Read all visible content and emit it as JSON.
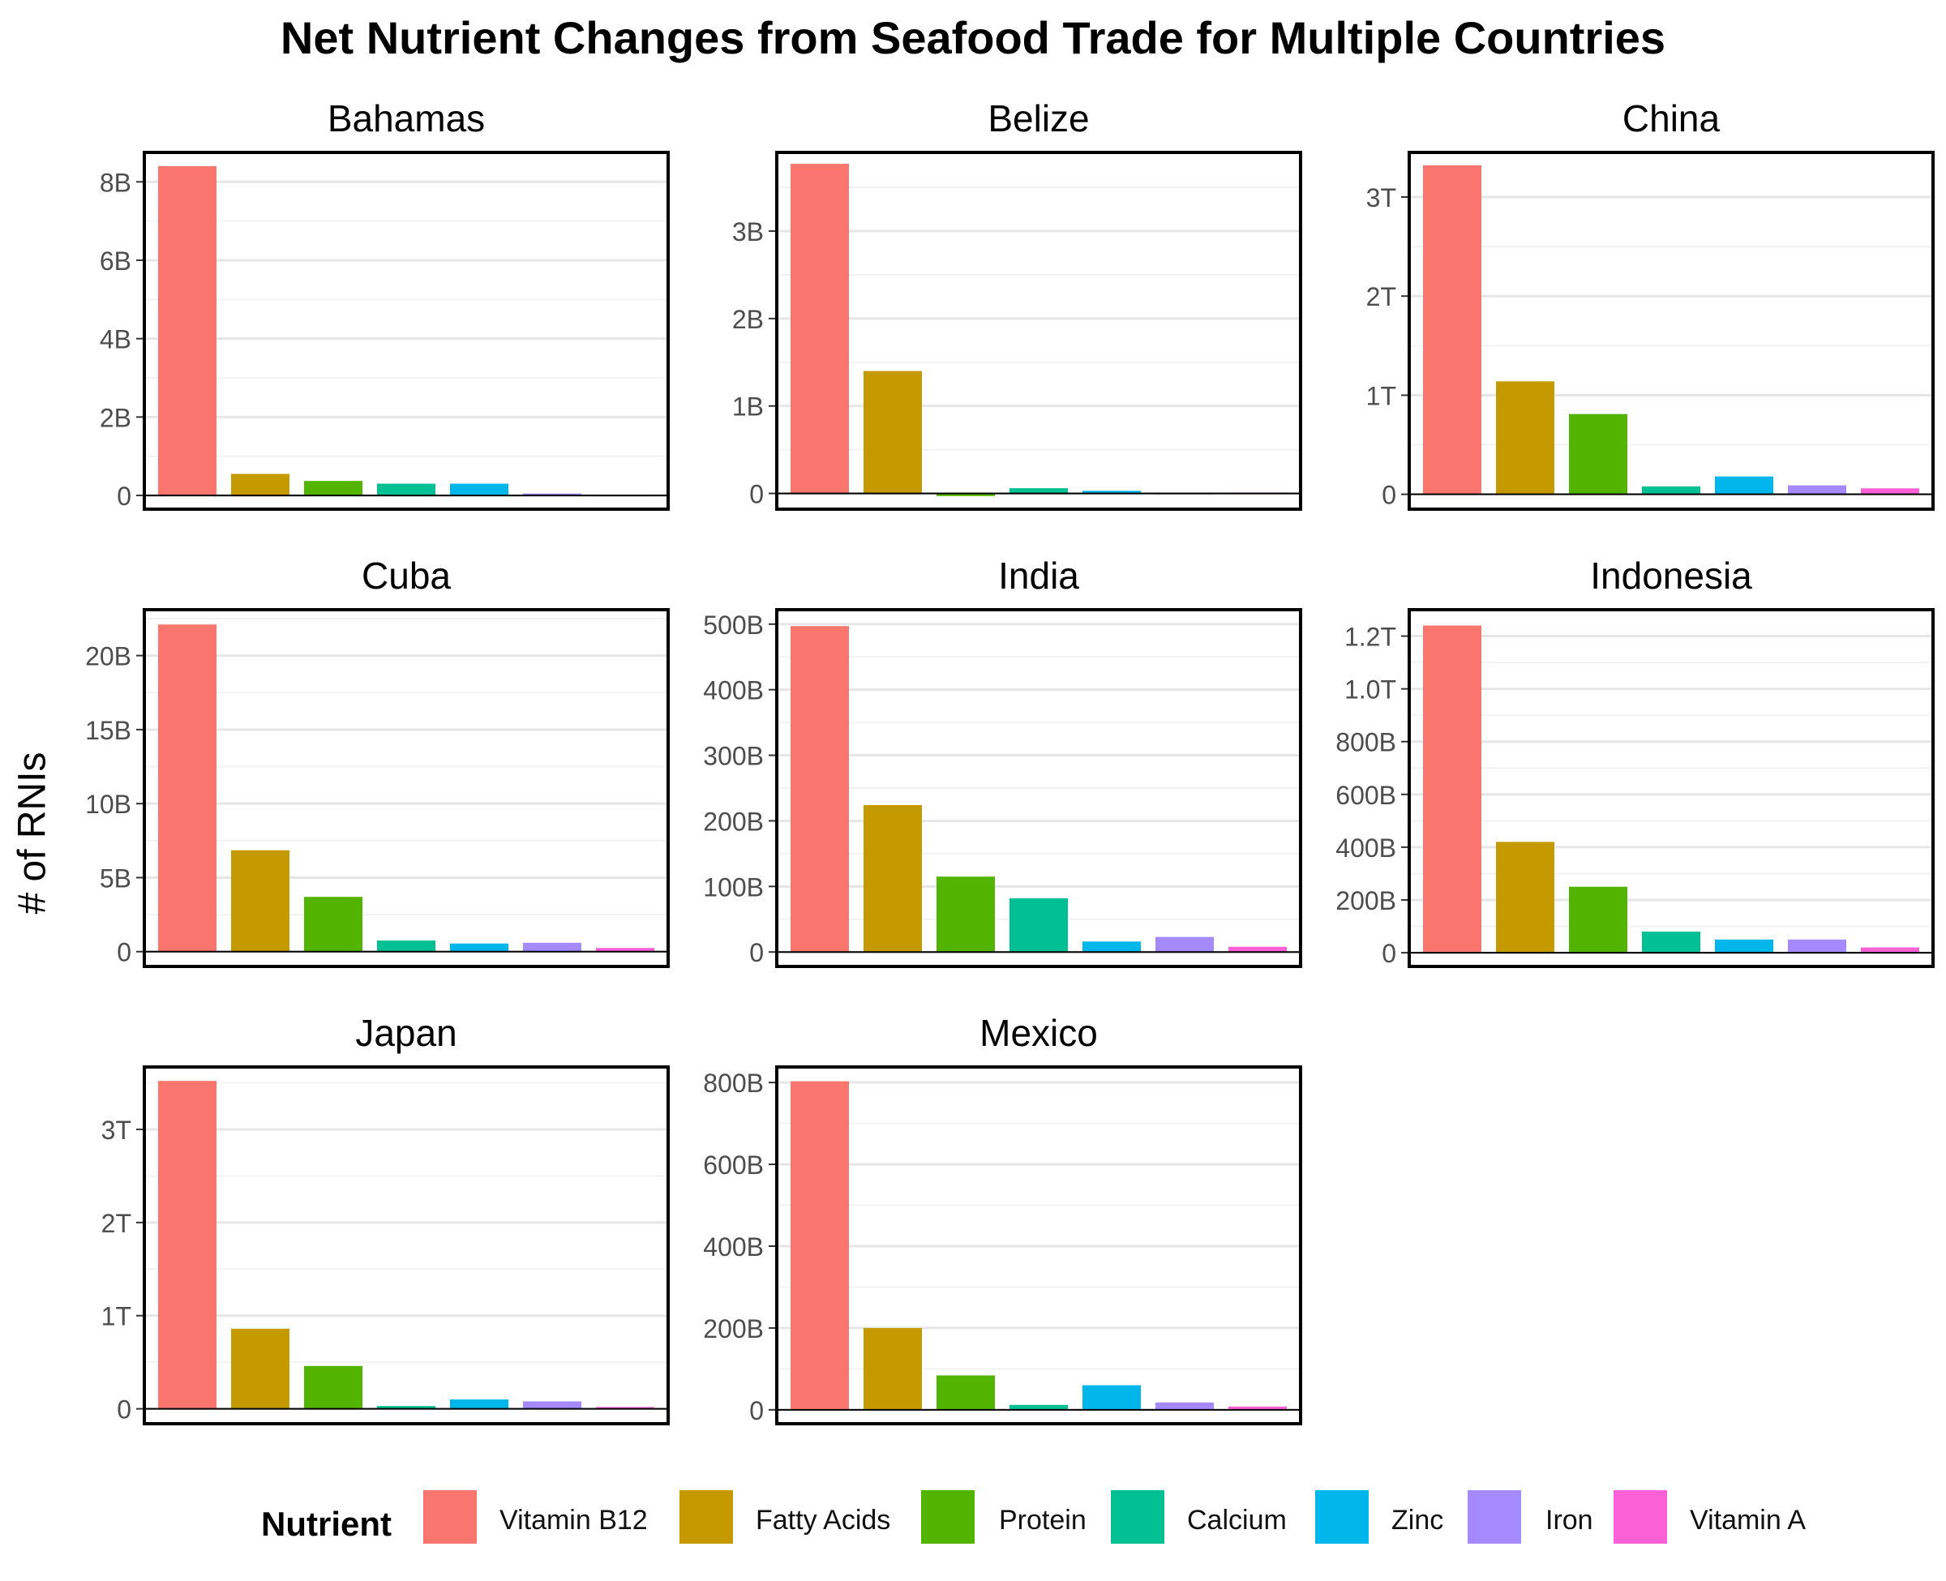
{
  "title": "Net Nutrient Changes from Seafood Trade for Multiple Countries",
  "ylabel": "# of RNIs",
  "legend": {
    "title": "Nutrient",
    "items": [
      {
        "label": "Vitamin B12",
        "color": "#F8766D"
      },
      {
        "label": "Fatty Acids",
        "color": "#C49A00"
      },
      {
        "label": "Protein",
        "color": "#53B400"
      },
      {
        "label": "Calcium",
        "color": "#00C094"
      },
      {
        "label": "Zinc",
        "color": "#00B6EB"
      },
      {
        "label": "Iron",
        "color": "#A58AFF"
      },
      {
        "label": "Vitamin A",
        "color": "#FB61D7"
      }
    ]
  },
  "chart_data": {
    "type": "bar",
    "categories": [
      "Vitamin B12",
      "Fatty Acids",
      "Protein",
      "Calcium",
      "Zinc",
      "Iron",
      "Vitamin A"
    ],
    "grid": true,
    "legend_position": "bottom",
    "panels": [
      {
        "name": "Bahamas",
        "ylim": [
          -350000000.0,
          8750000000.0
        ],
        "ticks": [
          {
            "v": 0,
            "label": "0"
          },
          {
            "v": 2000000000.0,
            "label": "2B"
          },
          {
            "v": 4000000000.0,
            "label": "4B"
          },
          {
            "v": 6000000000.0,
            "label": "6B"
          },
          {
            "v": 8000000000.0,
            "label": "8B"
          }
        ],
        "values": [
          8400000000.0,
          550000000.0,
          370000000.0,
          300000000.0,
          300000000.0,
          50000000.0,
          0
        ]
      },
      {
        "name": "Belize",
        "ylim": [
          -180000000.0,
          3900000000.0
        ],
        "ticks": [
          {
            "v": 0,
            "label": "0"
          },
          {
            "v": 1000000000.0,
            "label": "1B"
          },
          {
            "v": 2000000000.0,
            "label": "2B"
          },
          {
            "v": 3000000000.0,
            "label": "3B"
          }
        ],
        "values": [
          3770000000.0,
          1400000000.0,
          -30000000.0,
          60000000.0,
          30000000.0,
          -10000000.0,
          10000000.0
        ]
      },
      {
        "name": "China",
        "ylim": [
          -150000000000.0,
          3450000000000.0
        ],
        "ticks": [
          {
            "v": 0,
            "label": "0"
          },
          {
            "v": 1000000000000.0,
            "label": "1T"
          },
          {
            "v": 2000000000000.0,
            "label": "2T"
          },
          {
            "v": 3000000000000.0,
            "label": "3T"
          }
        ],
        "values": [
          3320000000000.0,
          1140000000000.0,
          810000000000.0,
          80000000000.0,
          180000000000.0,
          90000000000.0,
          60000000000.0
        ]
      },
      {
        "name": "Cuba",
        "ylim": [
          -1000000000.0,
          23100000000.0
        ],
        "ticks": [
          {
            "v": 0,
            "label": "0"
          },
          {
            "v": 5000000000.0,
            "label": "5B"
          },
          {
            "v": 10000000000.0,
            "label": "10B"
          },
          {
            "v": 15000000000.0,
            "label": "15B"
          },
          {
            "v": 20000000000.0,
            "label": "20B"
          }
        ],
        "values": [
          22100000000.0,
          6850000000.0,
          3700000000.0,
          750000000.0,
          550000000.0,
          600000000.0,
          250000000.0
        ]
      },
      {
        "name": "India",
        "ylim": [
          -22000000000.0,
          522000000000.0
        ],
        "ticks": [
          {
            "v": 0,
            "label": "0"
          },
          {
            "v": 100000000000.0,
            "label": "100B"
          },
          {
            "v": 200000000000.0,
            "label": "200B"
          },
          {
            "v": 300000000000.0,
            "label": "300B"
          },
          {
            "v": 400000000000.0,
            "label": "400B"
          },
          {
            "v": 500000000000.0,
            "label": "500B"
          }
        ],
        "values": [
          497000000000.0,
          224000000000.0,
          115000000000.0,
          82000000000.0,
          16000000000.0,
          23000000000.0,
          8000000000.0
        ]
      },
      {
        "name": "Indonesia",
        "ylim": [
          -52000000000.0,
          1300000000000.0
        ],
        "ticks": [
          {
            "v": 0,
            "label": "0"
          },
          {
            "v": 200000000000.0,
            "label": "200B"
          },
          {
            "v": 400000000000.0,
            "label": "400B"
          },
          {
            "v": 600000000000.0,
            "label": "600B"
          },
          {
            "v": 800000000000.0,
            "label": "800B"
          },
          {
            "v": 1000000000000.0,
            "label": "1.0T"
          },
          {
            "v": 1200000000000.0,
            "label": "1.2T"
          }
        ],
        "values": [
          1240000000000.0,
          420000000000.0,
          250000000000.0,
          80000000000.0,
          50000000000.0,
          50000000000.0,
          20000000000.0
        ]
      },
      {
        "name": "Japan",
        "ylim": [
          -160000000000.0,
          3670000000000.0
        ],
        "ticks": [
          {
            "v": 0,
            "label": "0"
          },
          {
            "v": 1000000000000.0,
            "label": "1T"
          },
          {
            "v": 2000000000000.0,
            "label": "2T"
          },
          {
            "v": 3000000000000.0,
            "label": "3T"
          }
        ],
        "values": [
          3520000000000.0,
          860000000000.0,
          460000000000.0,
          30000000000.0,
          100000000000.0,
          80000000000.0,
          20000000000.0
        ]
      },
      {
        "name": "Mexico",
        "ylim": [
          -34000000000.0,
          838000000000.0
        ],
        "ticks": [
          {
            "v": 0,
            "label": "0"
          },
          {
            "v": 200000000000.0,
            "label": "200B"
          },
          {
            "v": 400000000000.0,
            "label": "400B"
          },
          {
            "v": 600000000000.0,
            "label": "600B"
          },
          {
            "v": 800000000000.0,
            "label": "800B"
          }
        ],
        "values": [
          803000000000.0,
          200000000000.0,
          84000000000.0,
          12000000000.0,
          60000000000.0,
          18000000000.0,
          8000000000.0
        ]
      }
    ]
  }
}
